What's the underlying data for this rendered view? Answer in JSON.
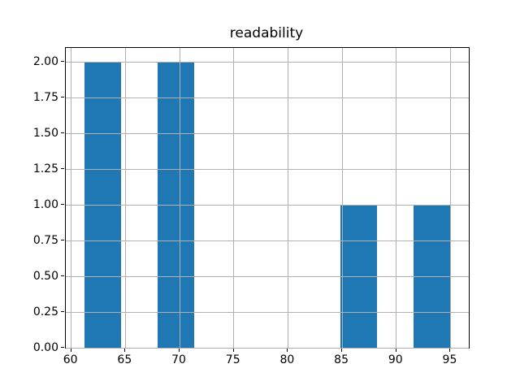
{
  "figure": {
    "background": "#ffffff"
  },
  "chart_data": {
    "type": "bar",
    "subtype": "histogram",
    "title": "readability",
    "xlabel": "",
    "ylabel": "",
    "bin_edges": [
      61.19,
      64.57,
      67.95,
      71.33,
      74.71,
      78.09,
      81.48,
      84.86,
      88.24,
      91.62,
      95.0
    ],
    "counts": [
      2,
      0,
      2,
      0,
      0,
      0,
      0,
      1,
      0,
      1
    ],
    "xlim": [
      59.5,
      96.69
    ],
    "ylim": [
      0,
      2.1
    ],
    "xticks": {
      "values": [
        60,
        65,
        70,
        75,
        80,
        85,
        90,
        95
      ],
      "labels": [
        "60",
        "65",
        "70",
        "75",
        "80",
        "85",
        "90",
        "95"
      ]
    },
    "yticks": {
      "values": [
        0,
        0.25,
        0.5,
        0.75,
        1.0,
        1.25,
        1.5,
        1.75,
        2.0
      ],
      "labels": [
        "0.00",
        "0.25",
        "0.50",
        "0.75",
        "1.00",
        "1.25",
        "1.50",
        "1.75",
        "2.00"
      ]
    },
    "grid": true,
    "grid_above_bars": true,
    "legend_position": "none",
    "colors": {
      "bar": "#1f77b4",
      "grid": "#b0b0b0",
      "spine": "#000000",
      "tick": "#000000",
      "text": "#000000"
    }
  }
}
